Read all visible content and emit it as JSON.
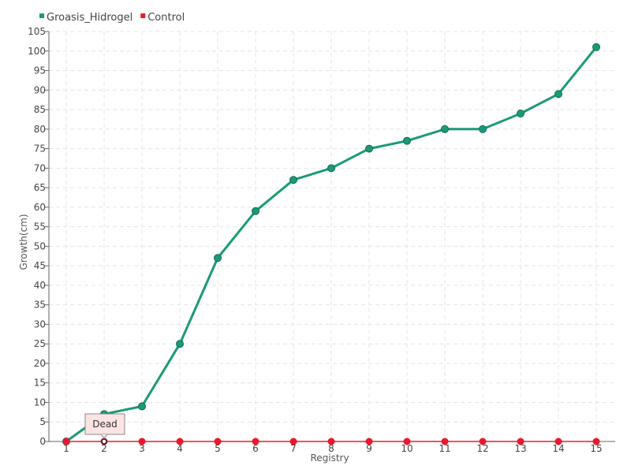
{
  "chart_data": {
    "type": "line",
    "title": "",
    "xlabel": "Registry",
    "ylabel": "Growth(cm)",
    "categories": [
      "1",
      "2",
      "3",
      "4",
      "5",
      "6",
      "7",
      "8",
      "9",
      "10",
      "11",
      "12",
      "13",
      "14",
      "15"
    ],
    "ylim": [
      0,
      105
    ],
    "yticks": [
      0,
      5,
      10,
      15,
      20,
      25,
      30,
      35,
      40,
      45,
      50,
      55,
      60,
      65,
      70,
      75,
      80,
      85,
      90,
      95,
      100,
      105
    ],
    "grid": true,
    "legend_position": "top-left",
    "series": [
      {
        "name": "Groasis_Hidrogel",
        "color": "#1a9a78",
        "values": [
          0,
          7,
          9,
          25,
          47,
          59,
          67,
          70,
          75,
          77,
          80,
          80,
          84,
          89,
          101
        ]
      },
      {
        "name": "Control",
        "color": "#e8192c",
        "values": [
          0,
          0,
          0,
          0,
          0,
          0,
          0,
          0,
          0,
          0,
          0,
          0,
          0,
          0,
          0
        ]
      }
    ],
    "annotations": [
      {
        "text": "Dead",
        "series": "Control",
        "x": "2",
        "y": 0
      }
    ]
  }
}
